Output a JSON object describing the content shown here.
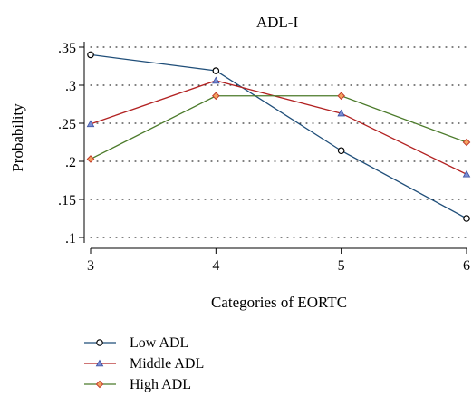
{
  "chart_data": {
    "type": "line",
    "title": "ADL-I",
    "xlabel": "Categories of EORTC",
    "ylabel": "Probability",
    "x": [
      3,
      4,
      5,
      6
    ],
    "xticks": [
      "3",
      "4",
      "5",
      "6"
    ],
    "yticks": [
      {
        "value": 0.1,
        "label": ".1"
      },
      {
        "value": 0.15,
        "label": ".15"
      },
      {
        "value": 0.2,
        "label": ".2"
      },
      {
        "value": 0.25,
        "label": ".25"
      },
      {
        "value": 0.3,
        "label": ".3"
      },
      {
        "value": 0.35,
        "label": ".35"
      }
    ],
    "ylim": [
      0.1,
      0.35
    ],
    "xlim": [
      3,
      6
    ],
    "grid": "horizontal dotted",
    "legend_position": "bottom-left",
    "series": [
      {
        "name": "Low ADL",
        "values": [
          0.34,
          0.319,
          0.214,
          0.125
        ],
        "color": "#1f4e79",
        "marker": "circle"
      },
      {
        "name": "Middle ADL",
        "values": [
          0.249,
          0.306,
          0.263,
          0.183
        ],
        "color": "#b22222",
        "marker": "triangle"
      },
      {
        "name": "High ADL",
        "values": [
          0.203,
          0.286,
          0.286,
          0.225
        ],
        "color": "#4b7a2a",
        "marker": "diamond"
      }
    ]
  }
}
